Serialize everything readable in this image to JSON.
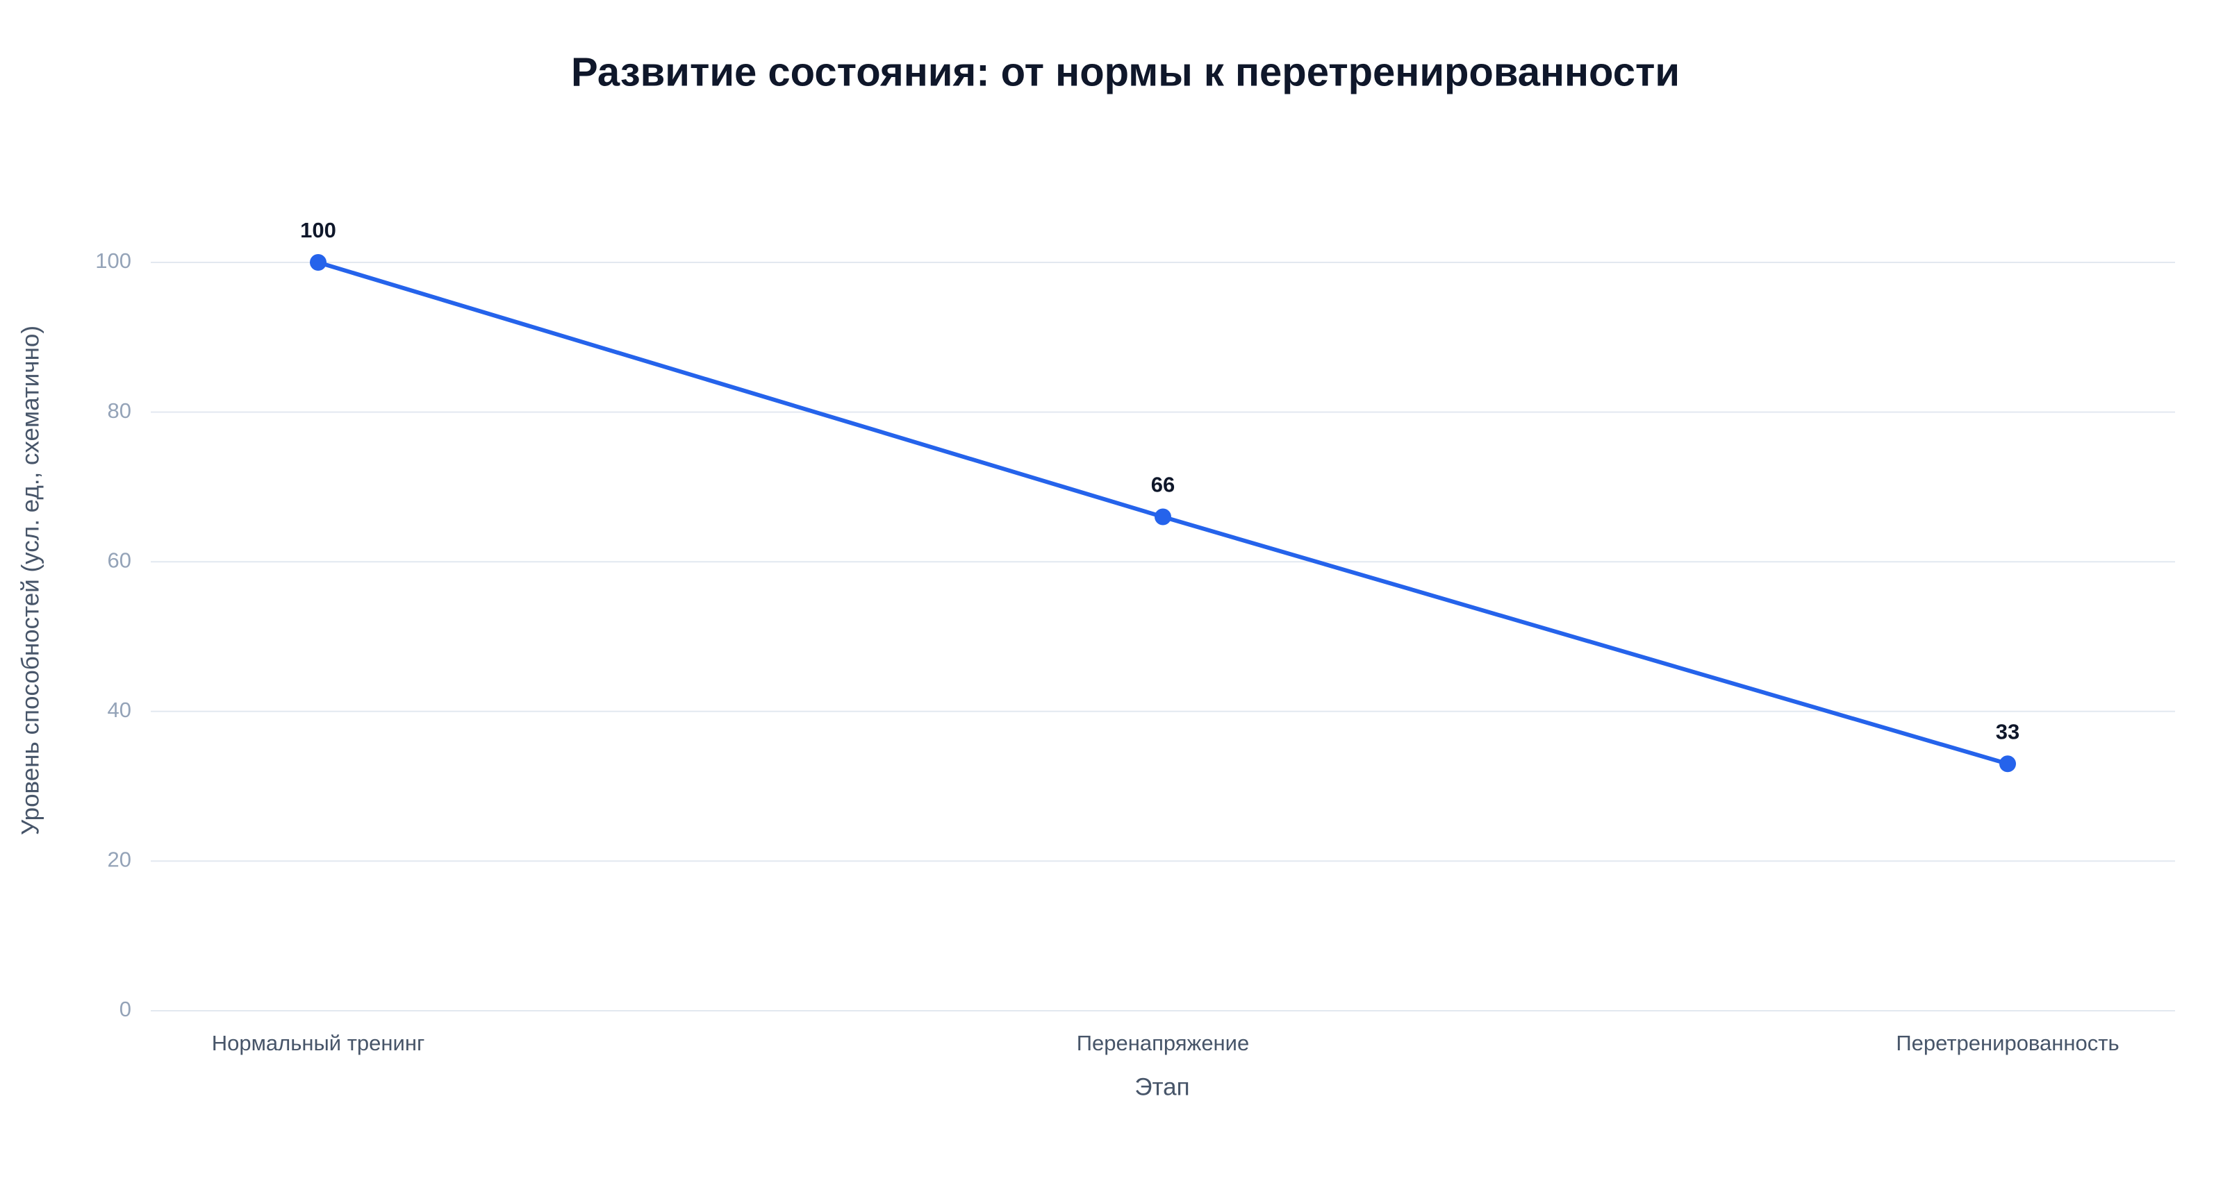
{
  "chart_data": {
    "type": "line",
    "title": "Развитие состояния: от нормы к перетренированности",
    "x_label": "Этап",
    "y_label": "Уровень способностей (усл. ед., схематично)",
    "categories": [
      "Нормальный тренинг",
      "Перенапряжение",
      "Перетренированность"
    ],
    "series": [
      {
        "name": "Уровень способностей",
        "color": "#2563eb",
        "values": [
          100,
          66,
          33
        ]
      }
    ],
    "ylim": [
      0,
      100
    ],
    "yticks": [
      0,
      20,
      40,
      60,
      80,
      100
    ],
    "grid": true
  }
}
